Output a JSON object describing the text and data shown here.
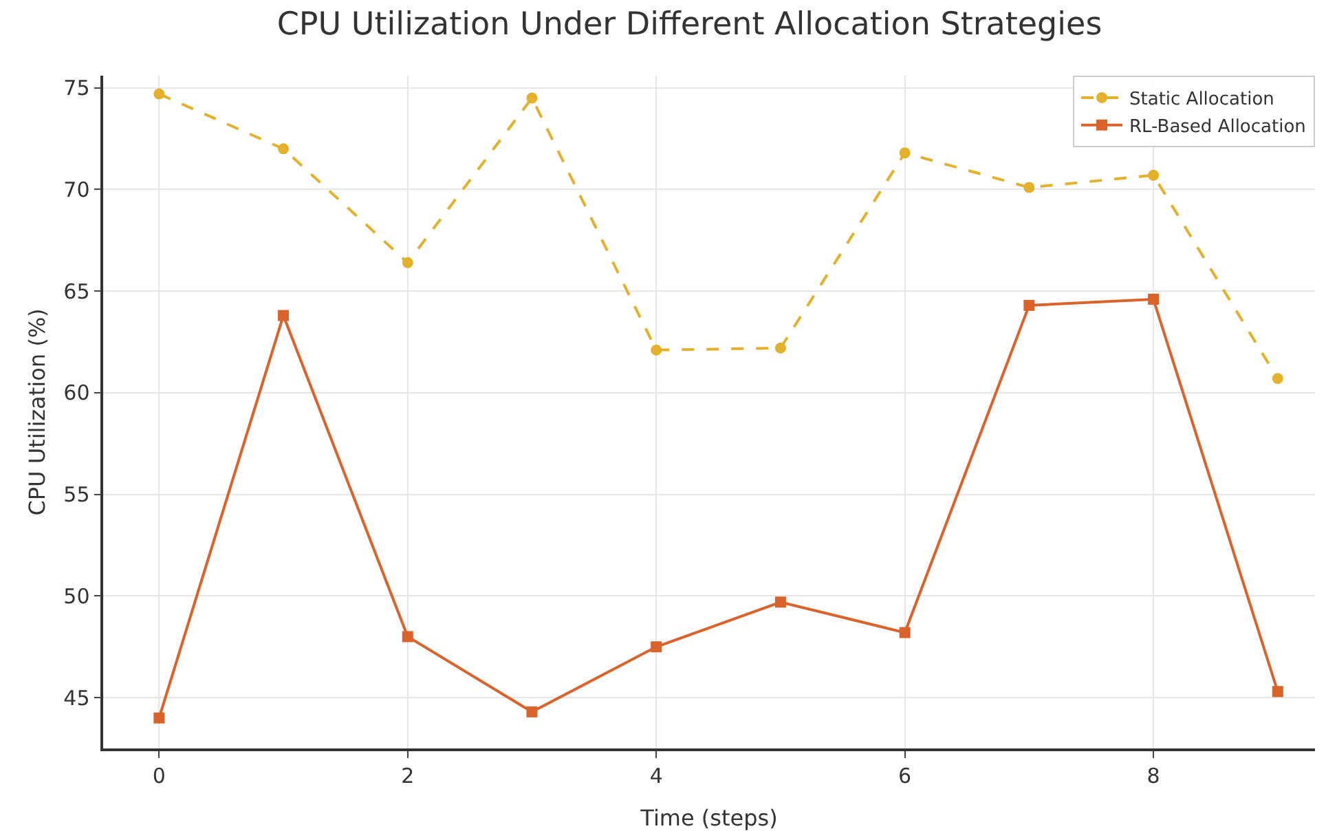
{
  "chart_data": {
    "type": "line",
    "title": "CPU Utilization Under Different Allocation Strategies",
    "xlabel": "Time (steps)",
    "ylabel": "CPU Utilization (%)",
    "x": [
      0,
      1,
      2,
      3,
      4,
      5,
      6,
      7,
      8,
      9
    ],
    "series": [
      {
        "name": "Static Allocation",
        "color": "#e3b12c",
        "marker": "circle",
        "line_style": "dashed",
        "values": [
          74.7,
          72.0,
          66.4,
          74.5,
          62.1,
          62.2,
          71.8,
          70.1,
          70.7,
          60.7
        ]
      },
      {
        "name": "RL-Based Allocation",
        "color": "#d9632b",
        "marker": "square",
        "line_style": "solid",
        "values": [
          44.0,
          63.8,
          48.0,
          44.3,
          47.5,
          49.7,
          48.2,
          64.3,
          64.6,
          45.3
        ]
      }
    ],
    "xlim": [
      -0.45,
      9.3
    ],
    "xticks": [
      0,
      2,
      4,
      6,
      8
    ],
    "ylim": [
      42.5,
      75.6
    ],
    "yticks": [
      45,
      50,
      55,
      60,
      65,
      70,
      75
    ],
    "grid": true,
    "legend": "top right"
  }
}
